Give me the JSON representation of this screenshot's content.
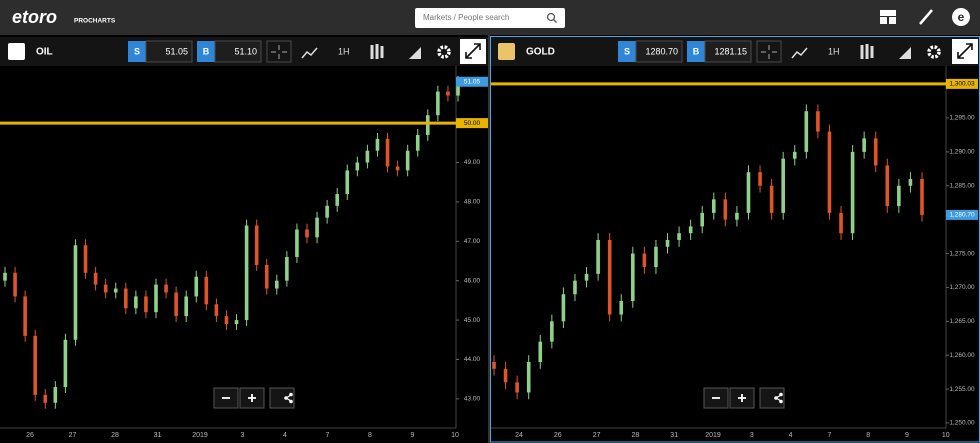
{
  "header": {
    "logo": "etoro",
    "product": "PROCHARTS",
    "search_placeholder": "Markets / People search"
  },
  "chart_data": [
    {
      "type": "candlestick",
      "title": "OIL",
      "sell_label": "S",
      "sell": "51.05",
      "buy_label": "B",
      "buy": "51.10",
      "timeframe": "1H",
      "categories": [
        "26",
        "27",
        "28",
        "31",
        "2019",
        "3",
        "4",
        "7",
        "8",
        "9",
        "10"
      ],
      "ylim": [
        42.26,
        51.45
      ],
      "yticks": [
        {
          "value": 43,
          "label": "43.00"
        },
        {
          "value": 44,
          "label": "44.00"
        },
        {
          "value": 45,
          "label": "45.00"
        },
        {
          "value": 46,
          "label": "46.00"
        },
        {
          "value": 47,
          "label": "47.00"
        },
        {
          "value": 48,
          "label": "48.00"
        },
        {
          "value": 49,
          "label": "49.00"
        }
      ],
      "level": {
        "value": 50,
        "label": "50.00"
      },
      "level_color": "#e8b400",
      "current": {
        "value": 51.05,
        "label": "51.05"
      },
      "current_color": "#3d9be0",
      "up_color": "#8fd18a",
      "down_color": "#e0542a",
      "open": [
        46.0,
        46.2,
        45.6,
        44.6,
        43.1,
        42.9,
        43.3,
        44.5,
        46.9,
        46.2,
        45.9,
        45.7,
        45.8,
        45.3,
        45.6,
        45.2,
        45.9,
        45.7,
        45.1,
        45.6,
        46.1,
        45.4,
        45.1,
        44.9,
        45.0,
        47.4,
        46.4,
        45.8,
        46.0,
        46.6,
        47.3,
        47.1,
        47.6,
        47.9,
        48.2,
        48.8,
        49.0,
        49.3,
        49.6,
        48.9,
        48.8,
        49.3,
        49.7,
        50.2,
        50.8,
        50.7
      ],
      "high": [
        46.35,
        46.35,
        45.75,
        44.75,
        43.25,
        43.45,
        44.65,
        47.05,
        47.05,
        46.35,
        46.05,
        45.95,
        45.95,
        45.75,
        45.75,
        46.05,
        46.05,
        45.85,
        45.75,
        46.25,
        46.25,
        45.55,
        45.25,
        45.15,
        47.55,
        47.55,
        46.55,
        46.15,
        46.75,
        47.45,
        47.45,
        47.75,
        48.05,
        48.35,
        48.95,
        49.15,
        49.45,
        49.75,
        49.75,
        49.05,
        49.45,
        49.85,
        50.35,
        50.95,
        50.95,
        51.2
      ],
      "low": [
        45.85,
        45.45,
        44.45,
        42.95,
        42.75,
        42.75,
        43.15,
        44.35,
        46.05,
        45.75,
        45.55,
        45.55,
        45.15,
        45.15,
        45.05,
        45.05,
        45.55,
        44.95,
        44.95,
        45.45,
        45.25,
        44.95,
        44.75,
        44.75,
        44.85,
        46.25,
        45.65,
        45.65,
        45.85,
        46.45,
        46.95,
        46.95,
        47.45,
        47.75,
        48.05,
        48.65,
        48.85,
        49.15,
        48.75,
        48.65,
        48.65,
        49.15,
        49.55,
        50.05,
        50.55,
        50.55
      ],
      "close": [
        46.2,
        45.6,
        44.6,
        43.1,
        42.9,
        43.3,
        44.5,
        46.9,
        46.2,
        45.9,
        45.7,
        45.8,
        45.3,
        45.6,
        45.2,
        45.9,
        45.7,
        45.1,
        45.6,
        46.1,
        45.4,
        45.1,
        44.9,
        45.0,
        47.4,
        46.4,
        45.8,
        46.0,
        46.6,
        47.3,
        47.1,
        47.6,
        47.9,
        48.2,
        48.8,
        49.0,
        49.3,
        49.6,
        48.9,
        48.8,
        49.3,
        49.7,
        50.2,
        50.8,
        50.7,
        51.05
      ]
    },
    {
      "type": "candlestick",
      "title": "GOLD",
      "sell_label": "S",
      "sell": "1280.70",
      "buy_label": "B",
      "buy": "1281.15",
      "timeframe": "1H",
      "categories": [
        "24",
        "26",
        "27",
        "28",
        "31",
        "2019",
        "3",
        "4",
        "7",
        "8",
        "9",
        "10"
      ],
      "ylim": [
        1249.26,
        1302.67
      ],
      "yticks": [
        {
          "value": 1250,
          "label": "1,250.00"
        },
        {
          "value": 1255,
          "label": "1,255.00"
        },
        {
          "value": 1260,
          "label": "1,260.00"
        },
        {
          "value": 1265,
          "label": "1,265.00"
        },
        {
          "value": 1270,
          "label": "1,270.00"
        },
        {
          "value": 1275,
          "label": "1,275.00"
        },
        {
          "value": 1285,
          "label": "1,285.00"
        },
        {
          "value": 1290,
          "label": "1,290.00"
        },
        {
          "value": 1295,
          "label": "1,295.00"
        }
      ],
      "level": {
        "value": 1300.03,
        "label": "1,300.03"
      },
      "level_color": "#e8b400",
      "current": {
        "value": 1280.7,
        "label": "1,280.70"
      },
      "current_color": "#3d9be0",
      "up_color": "#8fd18a",
      "down_color": "#e0542a",
      "open": [
        1259,
        1258,
        1256,
        1254.5,
        1259,
        1262,
        1265,
        1269,
        1271,
        1272,
        1277,
        1266,
        1268,
        1275,
        1273,
        1276,
        1277,
        1278,
        1279,
        1281,
        1283,
        1280,
        1281,
        1287,
        1285,
        1281,
        1289,
        1290,
        1296,
        1293,
        1281,
        1278,
        1290,
        1292,
        1288,
        1282,
        1285,
        1286
      ],
      "high": [
        1260,
        1259,
        1257,
        1260,
        1263,
        1266,
        1270,
        1272,
        1273,
        1278,
        1278,
        1269,
        1276,
        1276,
        1277,
        1278,
        1279,
        1280,
        1282,
        1284,
        1284,
        1282,
        1288,
        1288,
        1286,
        1290,
        1291,
        1297,
        1297,
        1294,
        1282,
        1291,
        1293,
        1293,
        1289,
        1286,
        1287,
        1287
      ],
      "low": [
        1257,
        1255,
        1253.5,
        1253.5,
        1258,
        1261,
        1264,
        1268,
        1270,
        1271,
        1265,
        1265,
        1267,
        1272,
        1272,
        1275,
        1276,
        1277,
        1278,
        1280,
        1279,
        1279,
        1280,
        1284,
        1280,
        1280,
        1288,
        1289,
        1292,
        1280,
        1277,
        1277,
        1289,
        1287,
        1281,
        1281,
        1284,
        1279.7
      ],
      "close": [
        1258,
        1256,
        1254.5,
        1259,
        1262,
        1265,
        1269,
        1271,
        1272,
        1277,
        1266,
        1268,
        1275,
        1273,
        1276,
        1277,
        1278,
        1279,
        1281,
        1283,
        1280,
        1281,
        1287,
        1285,
        1281,
        1289,
        1290,
        1296,
        1293,
        1281,
        1278,
        1290,
        1292,
        1288,
        1282,
        1285,
        1286,
        1280.7
      ]
    }
  ]
}
